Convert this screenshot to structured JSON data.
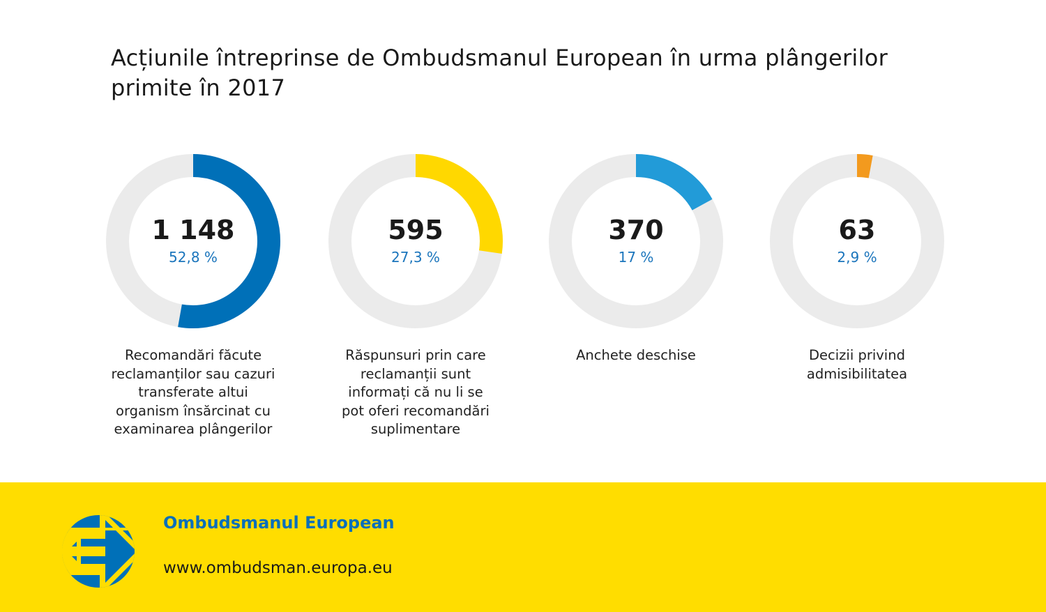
{
  "title": "Acțiunile întreprinse de Ombudsmanul European în urma plângerilor primite în 2017",
  "chart_data": {
    "type": "pie",
    "subtype": "donut",
    "title": "Acțiunile întreprinse de Ombudsmanul European în urma plângerilor primite în 2017",
    "track_color": "#ebebeb",
    "items": [
      {
        "value_label": "1 148",
        "value": 1148,
        "percent": 52.8,
        "percent_label": "52,8 %",
        "color": "#0070b8",
        "label": "Recomandări făcute reclamanților sau cazuri transferate altui organism însărcinat cu examinarea plângerilor"
      },
      {
        "value_label": "595",
        "value": 595,
        "percent": 27.3,
        "percent_label": "27,3 %",
        "color": "#ffd800",
        "label": "Răspunsuri prin care reclamanții sunt informați că nu li se pot oferi recomandări suplimentare"
      },
      {
        "value_label": "370",
        "value": 370,
        "percent": 17,
        "percent_label": "17 %",
        "color": "#229bd8",
        "label": "Anchete deschise"
      },
      {
        "value_label": "63",
        "value": 63,
        "percent": 2.9,
        "percent_label": "2,9 %",
        "color": "#f39a1e",
        "label": "Decizii privind admisibilitatea"
      }
    ]
  },
  "footer": {
    "organization": "Ombudsmanul European",
    "url": "www.ombudsman.europa.eu",
    "background": "#ffdd00"
  }
}
